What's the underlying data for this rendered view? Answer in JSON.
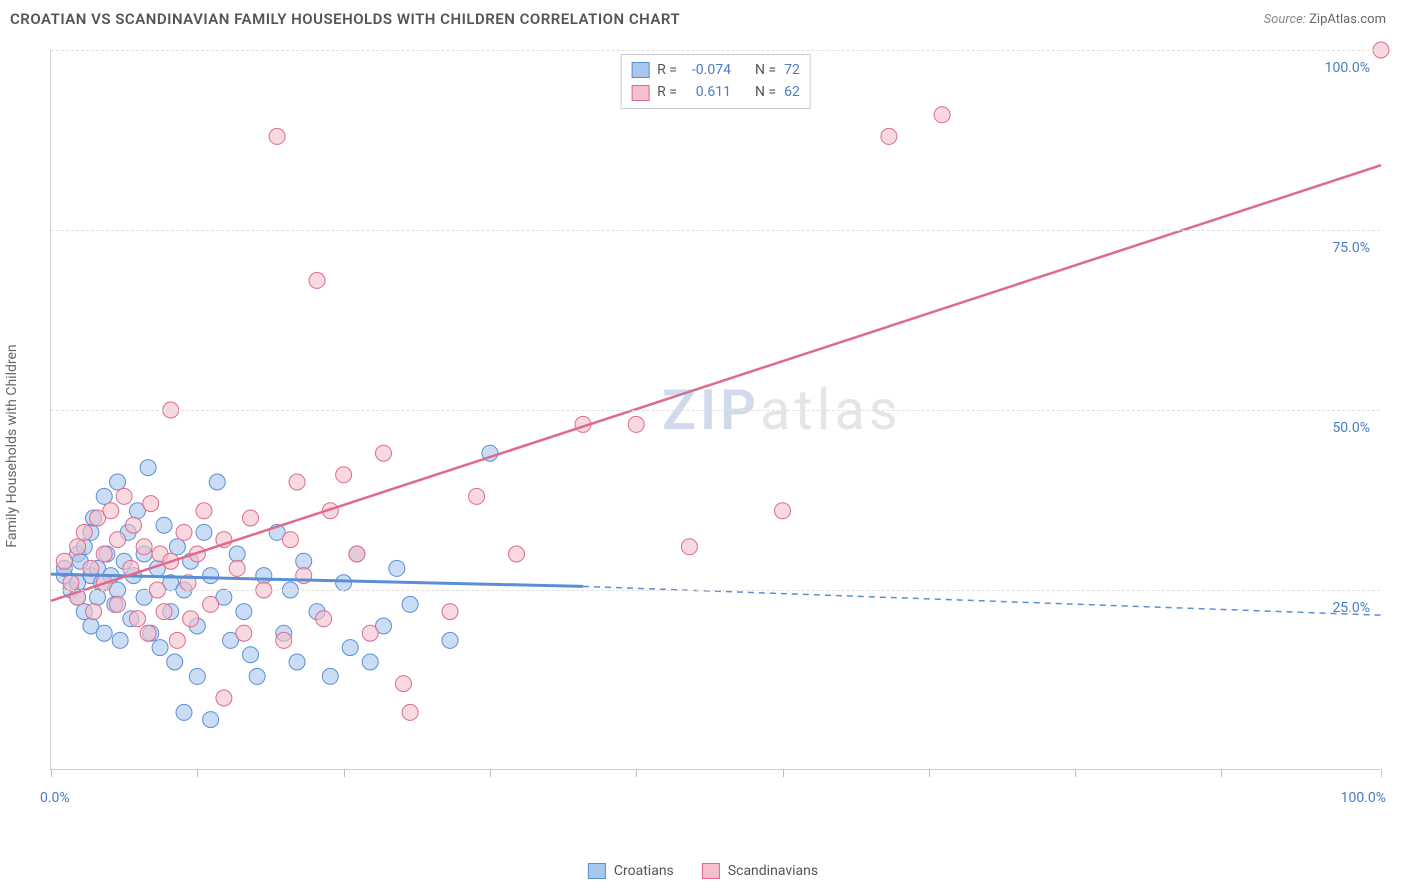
{
  "title": "CROATIAN VS SCANDINAVIAN FAMILY HOUSEHOLDS WITH CHILDREN CORRELATION CHART",
  "source_label": "Source:",
  "source_value": "ZipAtlas.com",
  "ylabel": "Family Households with Children",
  "watermark_zip": "ZIP",
  "watermark_rest": "atlas",
  "chart": {
    "type": "scatter",
    "xlim": [
      0,
      100
    ],
    "ylim": [
      0,
      100
    ],
    "x_ticks": [
      0,
      11,
      22,
      33,
      44,
      55,
      66,
      77,
      88,
      100
    ],
    "y_gridlines": [
      25,
      50,
      75,
      100
    ],
    "y_labels": [
      "25.0%",
      "50.0%",
      "75.0%",
      "100.0%"
    ],
    "x_axis_labels": {
      "min": "0.0%",
      "max": "100.0%"
    },
    "grid_color": "#e0e0e0",
    "axis_color": "#d0d0d0",
    "label_color": "#4a7bc8",
    "label_fontsize": 14,
    "point_radius": 8,
    "point_opacity": 0.6,
    "series": [
      {
        "name": "Croatians",
        "fill": "#a8c7ec",
        "stroke": "#5a8fd6",
        "R_label": "R =",
        "R_value": "-0.074",
        "N_label": "N =",
        "N_value": "72",
        "trend": {
          "solid_from": [
            0,
            27.2
          ],
          "solid_to": [
            40,
            25.5
          ],
          "dashed_to": [
            100,
            21.5
          ],
          "stroke_width": 3,
          "dash": "6,5"
        },
        "points": [
          [
            1,
            27
          ],
          [
            1,
            28
          ],
          [
            1.5,
            25
          ],
          [
            2,
            30
          ],
          [
            2,
            26
          ],
          [
            2,
            24
          ],
          [
            2.2,
            29
          ],
          [
            2.5,
            22
          ],
          [
            2.5,
            31
          ],
          [
            3,
            27
          ],
          [
            3,
            33
          ],
          [
            3,
            20
          ],
          [
            3.2,
            35
          ],
          [
            3.5,
            24
          ],
          [
            3.5,
            28
          ],
          [
            3.8,
            26
          ],
          [
            4,
            38
          ],
          [
            4,
            19
          ],
          [
            4.2,
            30
          ],
          [
            4.5,
            27
          ],
          [
            4.8,
            23
          ],
          [
            5,
            40
          ],
          [
            5,
            25
          ],
          [
            5.2,
            18
          ],
          [
            5.5,
            29
          ],
          [
            5.8,
            33
          ],
          [
            6,
            21
          ],
          [
            6.2,
            27
          ],
          [
            6.5,
            36
          ],
          [
            7,
            24
          ],
          [
            7,
            30
          ],
          [
            7.3,
            42
          ],
          [
            7.5,
            19
          ],
          [
            8,
            28
          ],
          [
            8.2,
            17
          ],
          [
            8.5,
            34
          ],
          [
            9,
            26
          ],
          [
            9,
            22
          ],
          [
            9.3,
            15
          ],
          [
            9.5,
            31
          ],
          [
            10,
            25
          ],
          [
            10,
            8
          ],
          [
            10.5,
            29
          ],
          [
            11,
            20
          ],
          [
            11,
            13
          ],
          [
            11.5,
            33
          ],
          [
            12,
            7
          ],
          [
            12,
            27
          ],
          [
            12.5,
            40
          ],
          [
            13,
            24
          ],
          [
            13.5,
            18
          ],
          [
            14,
            30
          ],
          [
            14.5,
            22
          ],
          [
            15,
            16
          ],
          [
            15.5,
            13
          ],
          [
            16,
            27
          ],
          [
            17,
            33
          ],
          [
            17.5,
            19
          ],
          [
            18,
            25
          ],
          [
            18.5,
            15
          ],
          [
            19,
            29
          ],
          [
            20,
            22
          ],
          [
            21,
            13
          ],
          [
            22,
            26
          ],
          [
            22.5,
            17
          ],
          [
            23,
            30
          ],
          [
            24,
            15
          ],
          [
            25,
            20
          ],
          [
            26,
            28
          ],
          [
            27,
            23
          ],
          [
            30,
            18
          ],
          [
            33,
            44
          ]
        ]
      },
      {
        "name": "Scandinavians",
        "fill": "#f4c0cc",
        "stroke": "#e06a8a",
        "R_label": "R =",
        "R_value": "0.611",
        "N_label": "N =",
        "N_value": "62",
        "trend": {
          "solid_from": [
            0,
            23.5
          ],
          "solid_to": [
            100,
            84
          ],
          "stroke_width": 2.5
        },
        "points": [
          [
            1,
            29
          ],
          [
            1.5,
            26
          ],
          [
            2,
            31
          ],
          [
            2,
            24
          ],
          [
            2.5,
            33
          ],
          [
            3,
            28
          ],
          [
            3.2,
            22
          ],
          [
            3.5,
            35
          ],
          [
            4,
            30
          ],
          [
            4,
            26
          ],
          [
            4.5,
            36
          ],
          [
            5,
            32
          ],
          [
            5,
            23
          ],
          [
            5.5,
            38
          ],
          [
            6,
            28
          ],
          [
            6.2,
            34
          ],
          [
            6.5,
            21
          ],
          [
            7,
            31
          ],
          [
            7.3,
            19
          ],
          [
            7.5,
            37
          ],
          [
            8,
            25
          ],
          [
            8.2,
            30
          ],
          [
            8.5,
            22
          ],
          [
            9,
            50
          ],
          [
            9,
            29
          ],
          [
            9.5,
            18
          ],
          [
            10,
            33
          ],
          [
            10.3,
            26
          ],
          [
            10.5,
            21
          ],
          [
            11,
            30
          ],
          [
            11.5,
            36
          ],
          [
            12,
            23
          ],
          [
            13,
            10
          ],
          [
            13,
            32
          ],
          [
            14,
            28
          ],
          [
            14.5,
            19
          ],
          [
            15,
            35
          ],
          [
            16,
            25
          ],
          [
            17,
            88
          ],
          [
            17.5,
            18
          ],
          [
            18,
            32
          ],
          [
            18.5,
            40
          ],
          [
            19,
            27
          ],
          [
            20,
            68
          ],
          [
            20.5,
            21
          ],
          [
            21,
            36
          ],
          [
            22,
            41
          ],
          [
            23,
            30
          ],
          [
            24,
            19
          ],
          [
            25,
            44
          ],
          [
            26.5,
            12
          ],
          [
            27,
            8
          ],
          [
            30,
            22
          ],
          [
            32,
            38
          ],
          [
            35,
            30
          ],
          [
            40,
            48
          ],
          [
            44,
            48
          ],
          [
            48,
            31
          ],
          [
            55,
            36
          ],
          [
            63,
            88
          ],
          [
            67,
            91
          ],
          [
            100,
            100
          ]
        ]
      }
    ]
  },
  "legend_bottom": [
    {
      "label": "Croatians",
      "fill": "#a8c7ec",
      "stroke": "#5a8fd6"
    },
    {
      "label": "Scandinavians",
      "fill": "#f4c0cc",
      "stroke": "#e06a8a"
    }
  ]
}
